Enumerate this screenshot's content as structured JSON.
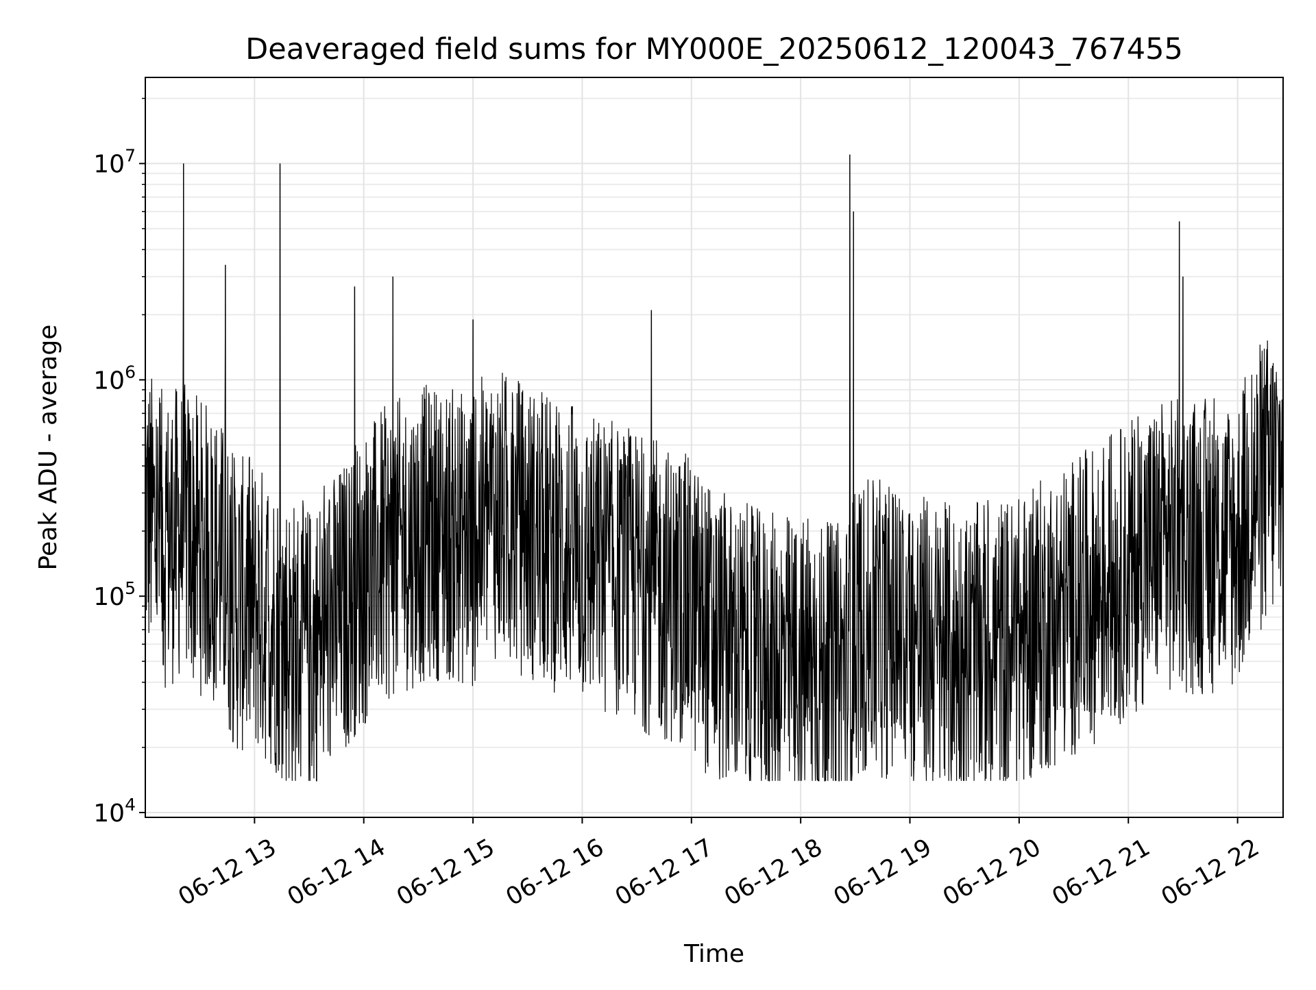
{
  "chart_data": {
    "type": "line",
    "title": "Deaveraged field sums for MY000E_20250612_120043_767455",
    "xlabel": "Time",
    "ylabel": "Peak ADU - average",
    "yscale": "log",
    "ylim": [
      9500,
      25000000
    ],
    "xlim": [
      "2025-06-12 12:00",
      "2025-06-12 22:25"
    ],
    "x_ticks": [
      "06-12 13",
      "06-12 14",
      "06-12 15",
      "06-12 16",
      "06-12 17",
      "06-12 18",
      "06-12 19",
      "06-12 20",
      "06-12 21",
      "06-12 22"
    ],
    "y_ticks": [
      {
        "value": 10000,
        "base": "10",
        "exp": "4"
      },
      {
        "value": 100000,
        "base": "10",
        "exp": "5"
      },
      {
        "value": 1000000,
        "base": "10",
        "exp": "6"
      },
      {
        "value": 10000000,
        "base": "10",
        "exp": "7"
      }
    ],
    "grid": true,
    "line_color": "#000000",
    "series": [
      {
        "values_time": [
          "2025-06-12 12:00",
          "2025-06-12 12:10",
          "2025-06-12 12:20",
          "2025-06-12 12:21",
          "2025-06-12 12:30",
          "2025-06-12 12:40",
          "2025-06-12 12:44",
          "2025-06-12 12:50",
          "2025-06-12 13:00",
          "2025-06-12 13:14",
          "2025-06-12 13:20",
          "2025-06-12 13:30",
          "2025-06-12 13:40",
          "2025-06-12 13:50",
          "2025-06-12 13:55",
          "2025-06-12 14:00",
          "2025-06-12 14:10",
          "2025-06-12 14:20",
          "2025-06-12 14:30",
          "2025-06-12 14:40",
          "2025-06-12 14:50",
          "2025-06-12 15:00",
          "2025-06-12 15:10",
          "2025-06-12 15:20",
          "2025-06-12 15:30",
          "2025-06-12 15:40",
          "2025-06-12 15:50",
          "2025-06-12 16:00",
          "2025-06-12 16:10",
          "2025-06-12 16:20",
          "2025-06-12 16:30",
          "2025-06-12 16:38",
          "2025-06-12 16:50",
          "2025-06-12 17:00",
          "2025-06-12 17:10",
          "2025-06-12 17:20",
          "2025-06-12 17:30",
          "2025-06-12 17:40",
          "2025-06-12 17:50",
          "2025-06-12 18:00",
          "2025-06-12 18:10",
          "2025-06-12 18:20",
          "2025-06-12 18:27",
          "2025-06-12 18:30",
          "2025-06-12 18:40",
          "2025-06-12 18:50",
          "2025-06-12 19:00",
          "2025-06-12 19:10",
          "2025-06-12 19:20",
          "2025-06-12 19:30",
          "2025-06-12 19:40",
          "2025-06-12 19:50",
          "2025-06-12 20:00",
          "2025-06-12 20:10",
          "2025-06-12 20:20",
          "2025-06-12 20:30",
          "2025-06-12 20:40",
          "2025-06-12 20:50",
          "2025-06-12 21:00",
          "2025-06-12 21:10",
          "2025-06-12 21:20",
          "2025-06-12 21:28",
          "2025-06-12 21:40",
          "2025-06-12 21:50",
          "2025-06-12 22:00",
          "2025-06-12 22:10",
          "2025-06-12 22:25"
        ],
        "values_typical": [
          250000,
          180000,
          200000,
          200000,
          170000,
          150000,
          120000,
          90000,
          90000,
          70000,
          60000,
          55000,
          70000,
          90000,
          110000,
          120000,
          150000,
          170000,
          190000,
          200000,
          190000,
          180000,
          250000,
          220000,
          200000,
          180000,
          170000,
          150000,
          140000,
          130000,
          120000,
          110000,
          100000,
          90000,
          70000,
          60000,
          55000,
          50000,
          50000,
          48000,
          45000,
          45000,
          50000,
          70000,
          70000,
          70000,
          65000,
          60000,
          55000,
          55000,
          55000,
          60000,
          60000,
          70000,
          80000,
          90000,
          100000,
          120000,
          130000,
          160000,
          170000,
          170000,
          170000,
          170000,
          180000,
          300000,
          400000
        ],
        "spikes": [
          {
            "t": "2025-06-12 12:21",
            "y": 10000000
          },
          {
            "t": "2025-06-12 12:44",
            "y": 3400000
          },
          {
            "t": "2025-06-12 13:14",
            "y": 10000000
          },
          {
            "t": "2025-06-12 13:55",
            "y": 2700000
          },
          {
            "t": "2025-06-12 14:16",
            "y": 3000000
          },
          {
            "t": "2025-06-12 15:00",
            "y": 1900000
          },
          {
            "t": "2025-06-12 16:38",
            "y": 2100000
          },
          {
            "t": "2025-06-12 18:27",
            "y": 11000000
          },
          {
            "t": "2025-06-12 18:29",
            "y": 6000000
          },
          {
            "t": "2025-06-12 21:28",
            "y": 5400000
          },
          {
            "t": "2025-06-12 21:30",
            "y": 3000000
          }
        ]
      }
    ]
  }
}
